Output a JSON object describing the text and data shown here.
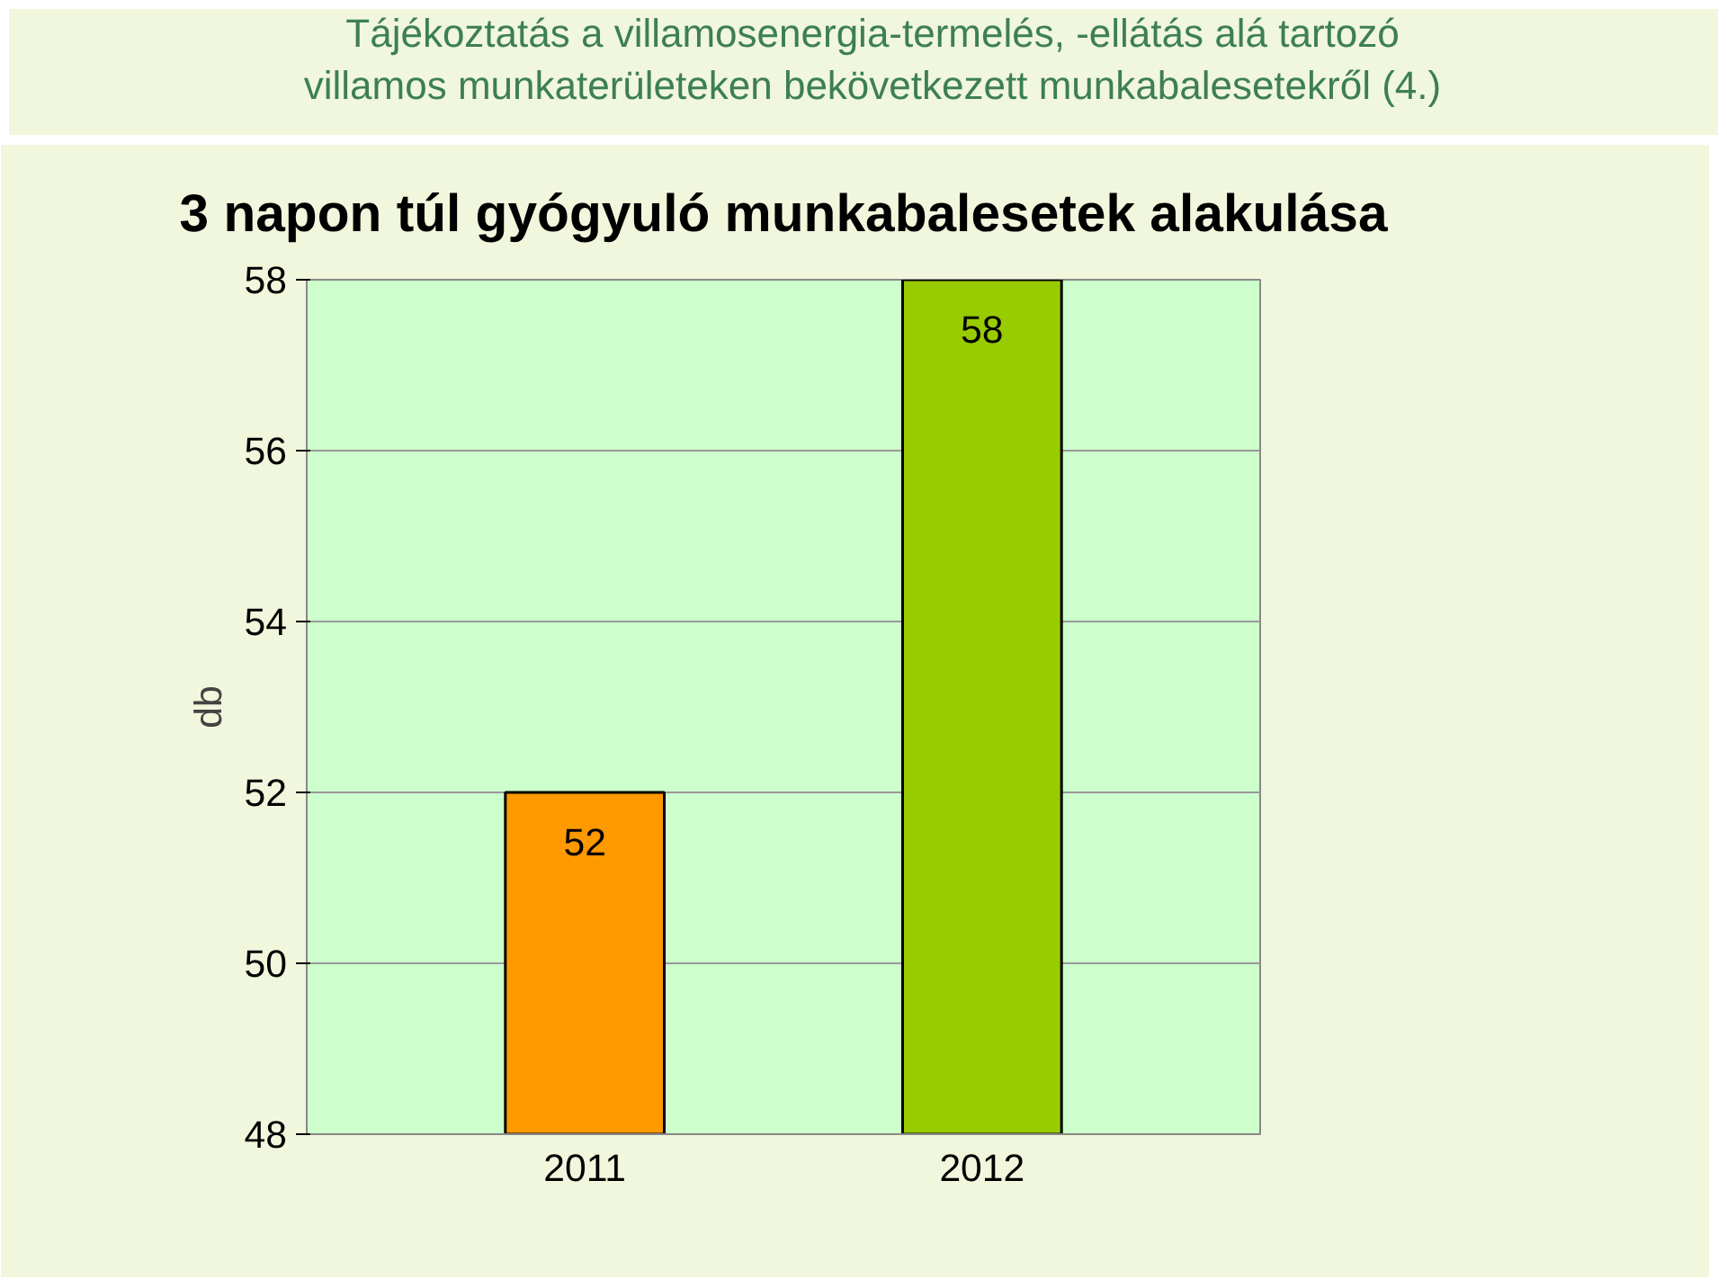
{
  "chart_data": {
    "type": "bar",
    "title": "Tájékoztatás a villamosenergia-termelés, -ellátás alá tartozó villamos munkaterületeken bekövetkezett munkabalesetekről (4.)",
    "subtitle": "3 napon túl gyógyuló munkabalesetek alakulása",
    "ylabel": "db",
    "categories": [
      "2011",
      "2012"
    ],
    "values": [
      52,
      58
    ],
    "colors": [
      "#ff9900",
      "#99cc00"
    ],
    "ylim": [
      48,
      58
    ],
    "yticks": [
      48,
      50,
      52,
      54,
      56,
      58
    ],
    "grid": "y",
    "data_labels": true
  }
}
